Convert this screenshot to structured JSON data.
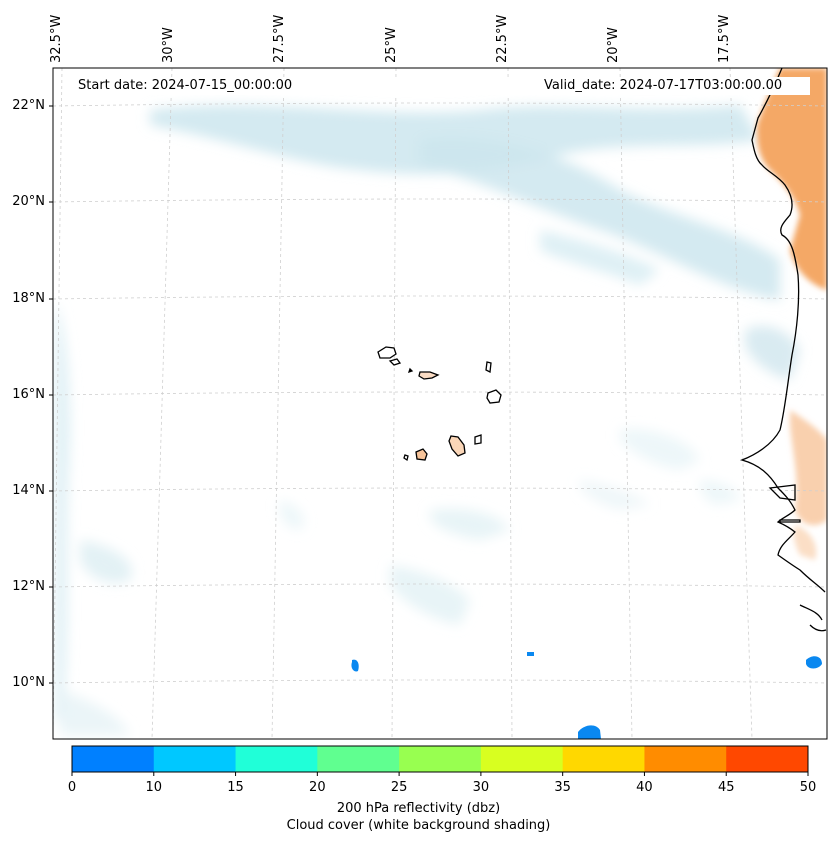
{
  "map": {
    "start_date": "Start date: 2024-07-15_00:00:00",
    "valid_date": "Valid_date: 2024-07-17T03:00:00.00",
    "lon_labels": [
      "32.5°W",
      "30°W",
      "27.5°W",
      "25°W",
      "22.5°W",
      "20°W",
      "17.5°W"
    ],
    "lat_labels": [
      "22°N",
      "20°N",
      "18°N",
      "16°N",
      "14°N",
      "12°N",
      "10°N"
    ]
  },
  "colorbar": {
    "ticks": [
      "0",
      "10",
      "15",
      "20",
      "25",
      "30",
      "35",
      "40",
      "45",
      "50"
    ],
    "colors": [
      "#0080ff",
      "#00c8ff",
      "#20ffd8",
      "#60ff90",
      "#98ff50",
      "#d8ff20",
      "#ffd800",
      "#ff8c00",
      "#ff4800"
    ],
    "title_line1": "200 hPa reflectivity (dbz)",
    "title_line2": "Cloud cover (white background shading)"
  }
}
